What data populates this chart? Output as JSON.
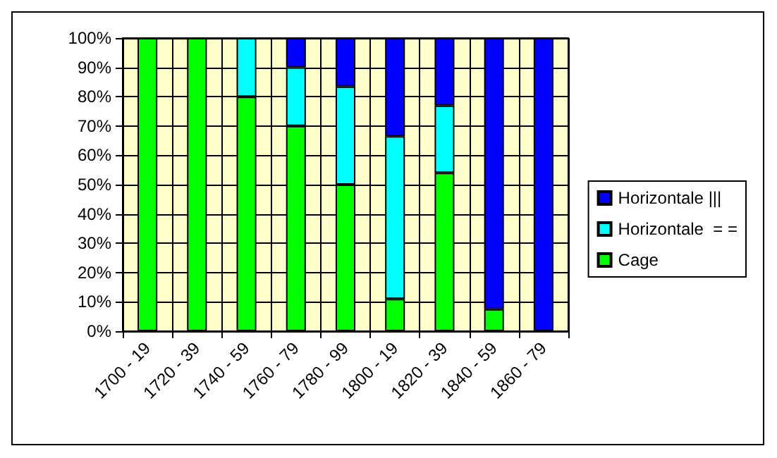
{
  "chart_data": {
    "type": "bar",
    "stacked": true,
    "categories": [
      "1700 - 19",
      "1720 - 39",
      "1740 - 59",
      "1760 - 79",
      "1780 - 99",
      "1800 - 19",
      "1820 - 39",
      "1840 - 59",
      "1860 - 79"
    ],
    "series": [
      {
        "name": "Cage",
        "color": "#00ff00",
        "values": [
          100,
          100,
          80,
          70,
          50,
          11,
          54,
          7.5,
          0
        ]
      },
      {
        "name": "Horizontale  = =",
        "color": "#00ffff",
        "values": [
          0,
          0,
          20,
          20,
          33.5,
          55.5,
          23,
          0,
          0
        ]
      },
      {
        "name": "Horizontale |||",
        "color": "#0000ff",
        "values": [
          0,
          0,
          0,
          10,
          16.5,
          33.5,
          23,
          92.5,
          100
        ]
      }
    ],
    "ylim": [
      0,
      100
    ],
    "yticks": [
      {
        "value": 0,
        "label": "0%"
      },
      {
        "value": 10,
        "label": "10%"
      },
      {
        "value": 20,
        "label": "20%"
      },
      {
        "value": 30,
        "label": "30%"
      },
      {
        "value": 40,
        "label": "40%"
      },
      {
        "value": 50,
        "label": "50%"
      },
      {
        "value": 60,
        "label": "60%"
      },
      {
        "value": 70,
        "label": "70%"
      },
      {
        "value": 80,
        "label": "80%"
      },
      {
        "value": 90,
        "label": "90%"
      },
      {
        "value": 100,
        "label": "100%"
      }
    ],
    "grid": true,
    "legend": "right"
  }
}
